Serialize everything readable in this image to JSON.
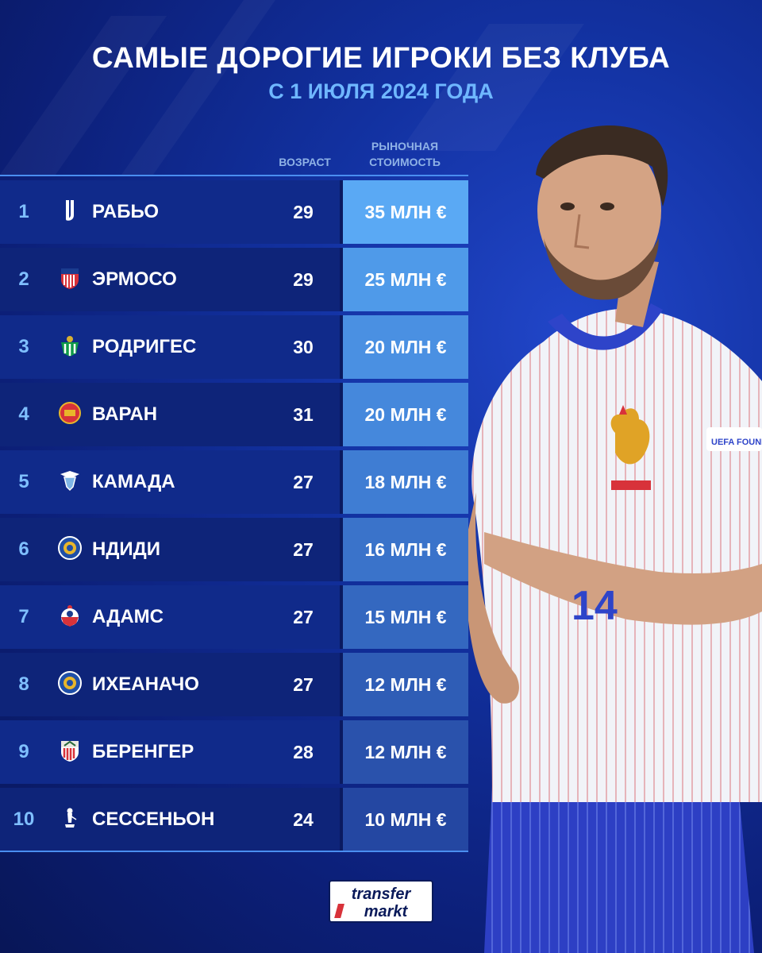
{
  "header": {
    "title": "САМЫЕ ДОРОГИЕ ИГРОКИ БЕЗ КЛУБА",
    "subtitle": "С 1 ИЮЛЯ 2024 ГОДА"
  },
  "columns": {
    "age": "ВОЗРАСТ",
    "value_line1": "РЫНОЧНАЯ",
    "value_line2": "СТОИМОСТЬ"
  },
  "players": [
    {
      "rank": "1",
      "name": "РАБЬО",
      "age": "29",
      "value": "35 МЛН €",
      "club_icon": "juventus-crest-icon"
    },
    {
      "rank": "2",
      "name": "ЭРМОСО",
      "age": "29",
      "value": "25 МЛН €",
      "club_icon": "atletico-madrid-crest-icon"
    },
    {
      "rank": "3",
      "name": "РОДРИГЕС",
      "age": "30",
      "value": "20 МЛН €",
      "club_icon": "real-betis-crest-icon"
    },
    {
      "rank": "4",
      "name": "ВАРАН",
      "age": "31",
      "value": "20 МЛН €",
      "club_icon": "manchester-united-crest-icon"
    },
    {
      "rank": "5",
      "name": "КАМАДА",
      "age": "27",
      "value": "18 МЛН €",
      "club_icon": "lazio-crest-icon"
    },
    {
      "rank": "6",
      "name": "НДИДИ",
      "age": "27",
      "value": "16 МЛН €",
      "club_icon": "leicester-city-crest-icon"
    },
    {
      "rank": "7",
      "name": "АДАМС",
      "age": "27",
      "value": "15 МЛН €",
      "club_icon": "southampton-crest-icon"
    },
    {
      "rank": "8",
      "name": "ИХЕАНАЧО",
      "age": "27",
      "value": "12 МЛН €",
      "club_icon": "leicester-city-crest-icon"
    },
    {
      "rank": "9",
      "name": "БЕРЕНГЕР",
      "age": "28",
      "value": "12 МЛН €",
      "club_icon": "athletic-bilbao-crest-icon"
    },
    {
      "rank": "10",
      "name": "СЕССЕНЬОН",
      "age": "24",
      "value": "10 МЛН €",
      "club_icon": "tottenham-crest-icon"
    }
  ],
  "value_cell_colors": [
    "#5aa9f4",
    "#4f9ae9",
    "#4a90e2",
    "#4588dc",
    "#3f7dd3",
    "#3a73ca",
    "#3468c0",
    "#2f5db6",
    "#2a52ac",
    "#2447a2"
  ],
  "photo": {
    "jersey_number": "14",
    "sleeve_badge": "UEFA FOUNDATION"
  },
  "branding": {
    "line1": "transfer",
    "line2": "markt"
  },
  "colors": {
    "background": "#1231a0",
    "accent": "#6fb7ff",
    "row": "#102a8a"
  }
}
